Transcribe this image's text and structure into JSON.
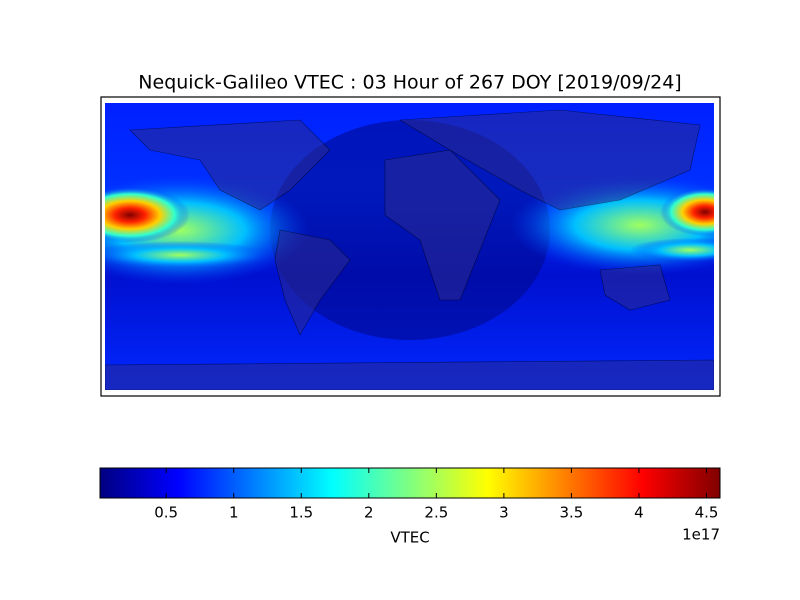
{
  "chart_data": {
    "type": "map",
    "title": "Nequick-Galileo VTEC : 03 Hour of 267 DOY [2019/09/24]",
    "colormap": "jet",
    "colorbar": {
      "label": "VTEC",
      "offset_text": "1e17",
      "clim": [
        0.01,
        4.6
      ],
      "ticks": [
        0.5,
        1.0,
        1.5,
        2.0,
        2.5,
        3.0,
        3.5,
        4.0,
        4.5
      ]
    }
  }
}
